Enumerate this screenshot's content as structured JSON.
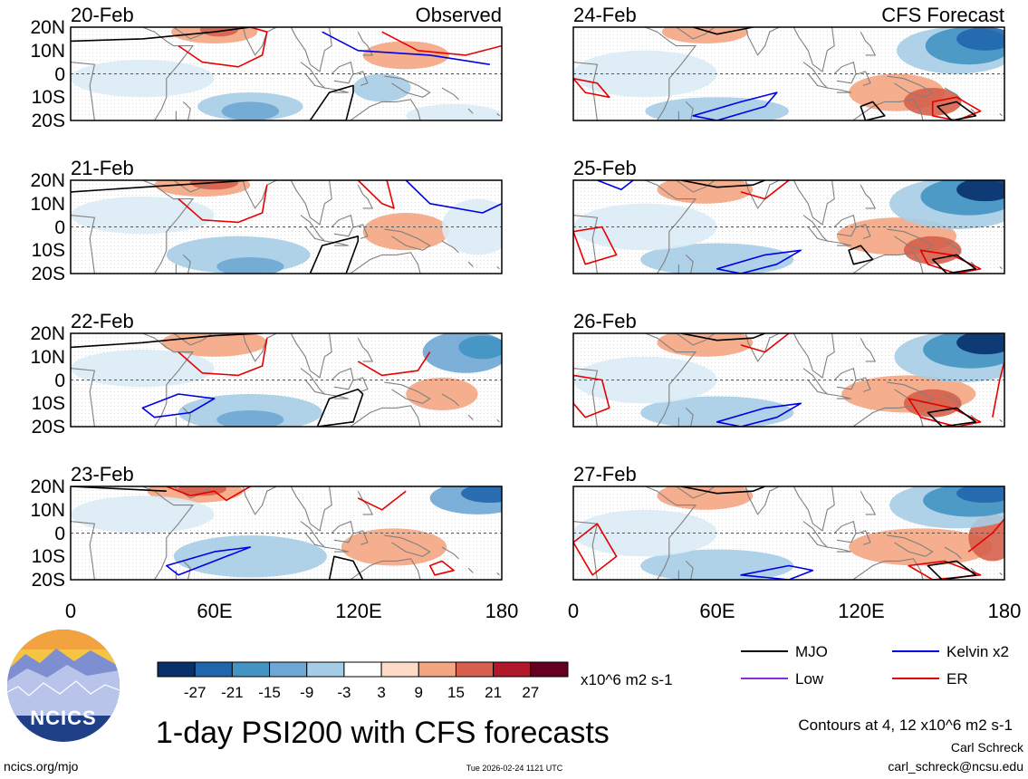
{
  "colors": {
    "mjo": "#000000",
    "low": "#8a2be2",
    "kelvin": "#0000e6",
    "er": "#e60000",
    "land": "#808080",
    "ncics_blue": "#1f3f86",
    "ncics_sun": "#f5c542"
  },
  "map": {
    "lat_labels": [
      "20N",
      "10N",
      "0",
      "10S",
      "20S"
    ],
    "lon_labels": [
      "0",
      "60E",
      "120E",
      "180"
    ],
    "observed_label": "Observed",
    "forecast_label": "CFS Forecast",
    "observed_dates": [
      "20-Feb",
      "21-Feb",
      "22-Feb",
      "23-Feb"
    ],
    "forecast_dates": [
      "24-Feb",
      "25-Feb",
      "26-Feb",
      "27-Feb"
    ],
    "lon_range": [
      0,
      180
    ],
    "lat_range": [
      -20,
      20
    ]
  },
  "colorbar": {
    "ticks": [
      "-27",
      "-21",
      "-15",
      "-9",
      "-3",
      "3",
      "9",
      "15",
      "21",
      "27"
    ],
    "colors": [
      "#08306b",
      "#2166ac",
      "#4393c3",
      "#6ea7d4",
      "#a6cde6",
      "#ffffff",
      "#fddbc7",
      "#f4a582",
      "#d6604d",
      "#b2182b",
      "#67001f"
    ],
    "units": "x10^6 m2 s-1"
  },
  "legend": {
    "mjo": "MJO",
    "low": "Low",
    "kelvin": "Kelvin x2",
    "er": "ER"
  },
  "title": "1-day PSI200 with CFS forecasts",
  "contour_note": "Contours at 4, 12 x10^6 m2 s-1",
  "author": "Carl Schreck",
  "email": "carl_schreck@ncsu.edu",
  "website": "ncics.org/mjo",
  "timestamp": "Tue 2026-02-24 1121 UTC",
  "logo_text": "NCICS"
}
